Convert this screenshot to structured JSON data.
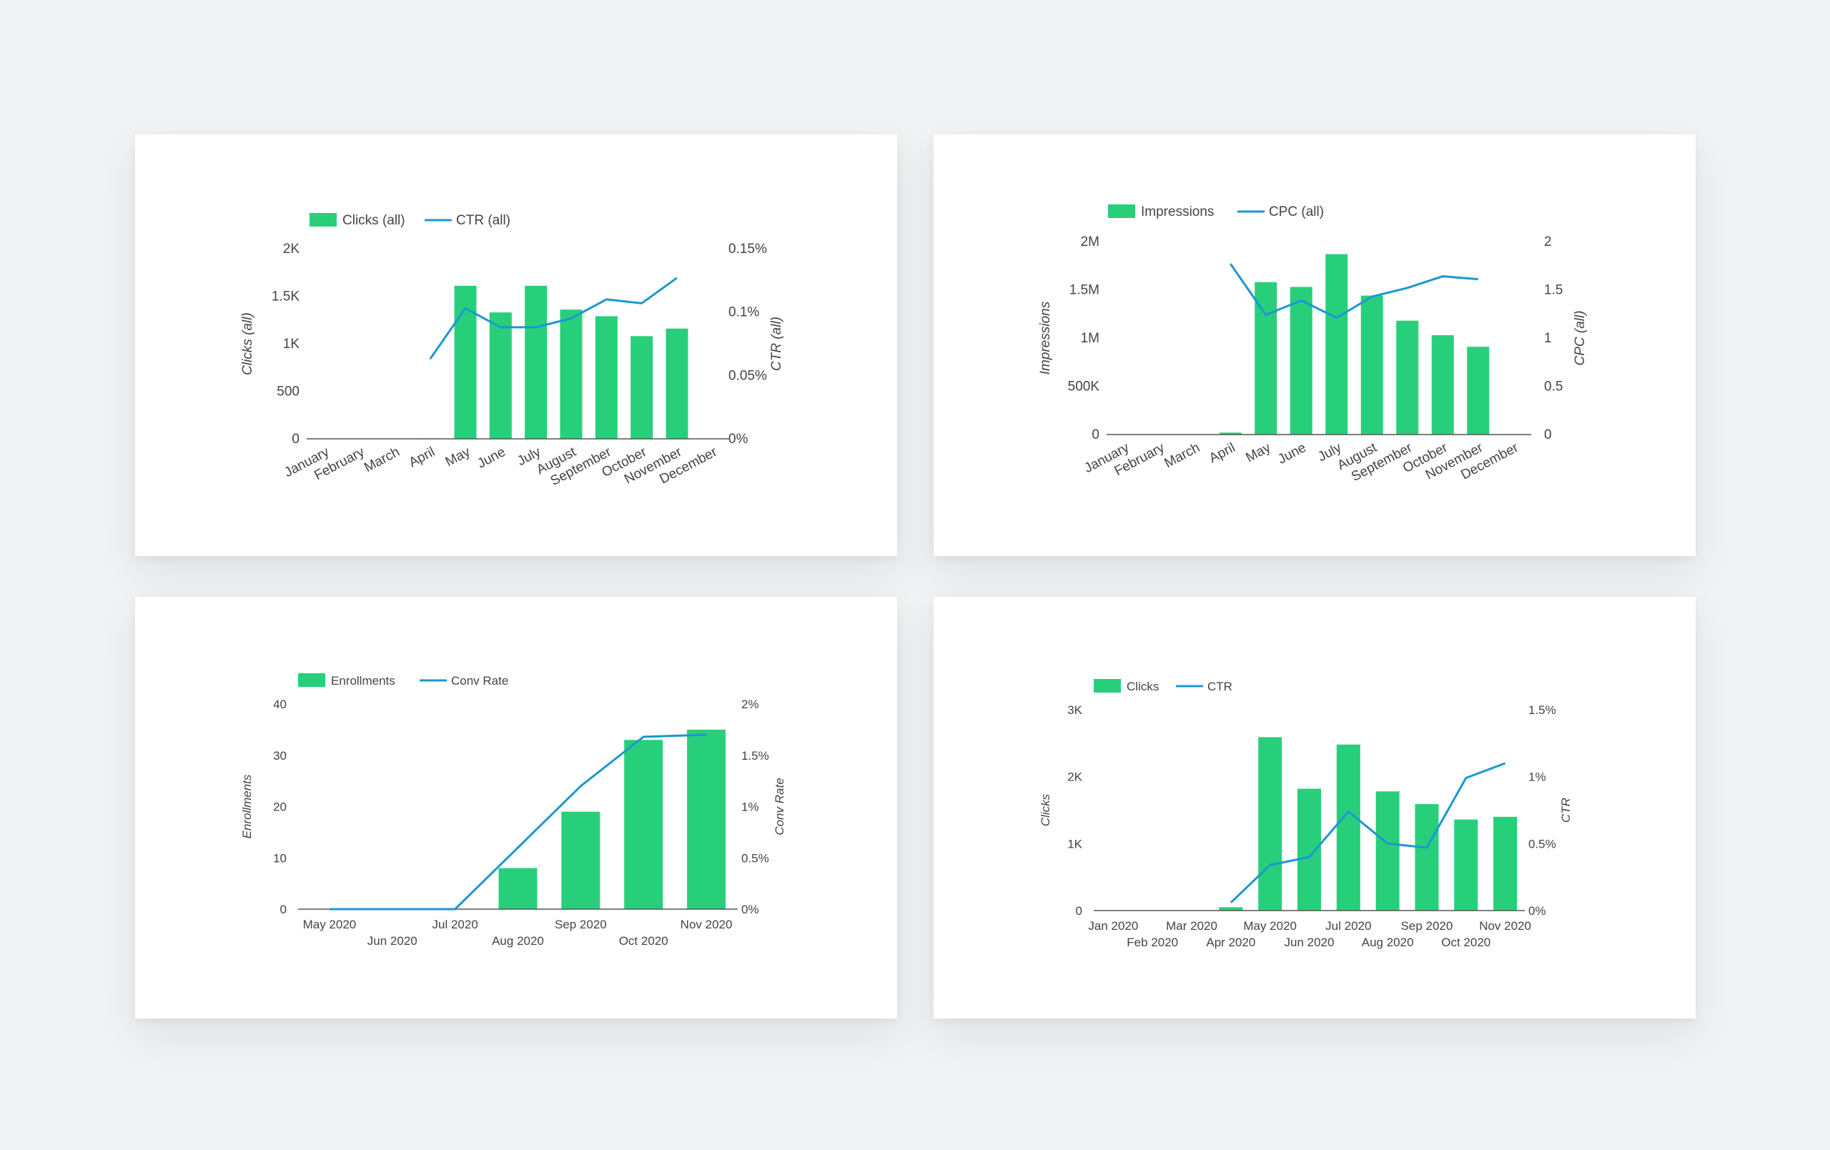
{
  "colors": {
    "bar": "#28cf7a",
    "line": "#1c97d1",
    "axis": "#555555",
    "text": "#444444"
  },
  "chart_data": [
    {
      "type": "bar",
      "categories": [
        "January",
        "February",
        "March",
        "April",
        "May",
        "June",
        "July",
        "August",
        "September",
        "October",
        "November",
        "December"
      ],
      "series": [
        {
          "name": "Clicks (all)",
          "kind": "bar",
          "axis": "left",
          "values": [
            0,
            0,
            0,
            5,
            1610,
            1330,
            1610,
            1360,
            1290,
            1080,
            1160,
            null
          ]
        },
        {
          "name": "CTR (all)",
          "kind": "line",
          "axis": "right",
          "values": [
            null,
            null,
            null,
            0.063,
            0.103,
            0.088,
            0.088,
            0.095,
            0.11,
            0.107,
            0.127,
            null
          ]
        }
      ],
      "ylabel": "Clicks (all)",
      "y2label": "CTR (all)",
      "ylim": [
        0,
        2000
      ],
      "y2lim": [
        0,
        0.15
      ],
      "yticks": [
        "0",
        "500",
        "1K",
        "1.5K",
        "2K"
      ],
      "y2ticks": [
        "0%",
        "0.05%",
        "0.1%",
        "0.15%"
      ],
      "legend": "top-left",
      "xlabel_rotation": "rotated"
    },
    {
      "type": "bar",
      "categories": [
        "January",
        "February",
        "March",
        "April",
        "May",
        "June",
        "July",
        "August",
        "September",
        "October",
        "November",
        "December"
      ],
      "series": [
        {
          "name": "Impressions",
          "kind": "bar",
          "axis": "left",
          "values": [
            0,
            0,
            0,
            20000,
            1580000,
            1530000,
            1870000,
            1440000,
            1180000,
            1030000,
            910000,
            null
          ]
        },
        {
          "name": "CPC (all)",
          "kind": "line",
          "axis": "right",
          "values": [
            null,
            null,
            null,
            1.77,
            1.24,
            1.39,
            1.21,
            1.43,
            1.52,
            1.64,
            1.61,
            null
          ]
        }
      ],
      "ylabel": "Impressions",
      "y2label": "CPC (all)",
      "ylim": [
        0,
        2000000
      ],
      "y2lim": [
        0,
        2
      ],
      "yticks": [
        "0",
        "500K",
        "1M",
        "1.5M",
        "2M"
      ],
      "y2ticks": [
        "0",
        "0.5",
        "1",
        "1.5",
        "2"
      ],
      "legend": "top-left",
      "xlabel_rotation": "rotated"
    },
    {
      "type": "bar",
      "categories": [
        "May 2020",
        "Jun 2020",
        "Jul 2020",
        "Aug 2020",
        "Sep 2020",
        "Oct 2020",
        "Nov 2020"
      ],
      "series": [
        {
          "name": "Enrollments",
          "kind": "bar",
          "axis": "left",
          "values": [
            0,
            0,
            0,
            8,
            19,
            33,
            35
          ]
        },
        {
          "name": "Conv Rate",
          "kind": "line",
          "axis": "right",
          "values": [
            0,
            0,
            0,
            0.006,
            0.012,
            0.0168,
            0.017
          ]
        }
      ],
      "ylabel": "Enrollments",
      "y2label": "Conv Rate",
      "ylim": [
        0,
        40
      ],
      "y2lim": [
        0,
        0.02
      ],
      "yticks": [
        "0",
        "10",
        "20",
        "30",
        "40"
      ],
      "y2ticks": [
        "0%",
        "0.5%",
        "1%",
        "1.5%",
        "2%"
      ],
      "legend": "top-left",
      "xlabel_rotation": "staggered"
    },
    {
      "type": "bar",
      "categories": [
        "Jan 2020",
        "Feb 2020",
        "Mar 2020",
        "Apr 2020",
        "May 2020",
        "Jun 2020",
        "Jul 2020",
        "Aug 2020",
        "Sep 2020",
        "Oct 2020",
        "Nov 2020"
      ],
      "series": [
        {
          "name": "Clicks",
          "kind": "bar",
          "axis": "left",
          "values": [
            0,
            0,
            0,
            50,
            2590,
            1820,
            2480,
            1780,
            1590,
            1360,
            1400
          ]
        },
        {
          "name": "CTR",
          "kind": "line",
          "axis": "right",
          "values": [
            null,
            null,
            null,
            0.0006,
            0.0034,
            0.004,
            0.0074,
            0.005,
            0.0047,
            0.0099,
            0.011
          ]
        }
      ],
      "ylabel": "Clicks",
      "y2label": "CTR",
      "ylim": [
        0,
        3000
      ],
      "y2lim": [
        0,
        0.015
      ],
      "yticks": [
        "0",
        "1K",
        "2K",
        "3K"
      ],
      "y2ticks": [
        "0%",
        "0.5%",
        "1%",
        "1.5%"
      ],
      "legend": "top-left",
      "xlabel_rotation": "staggered"
    }
  ]
}
